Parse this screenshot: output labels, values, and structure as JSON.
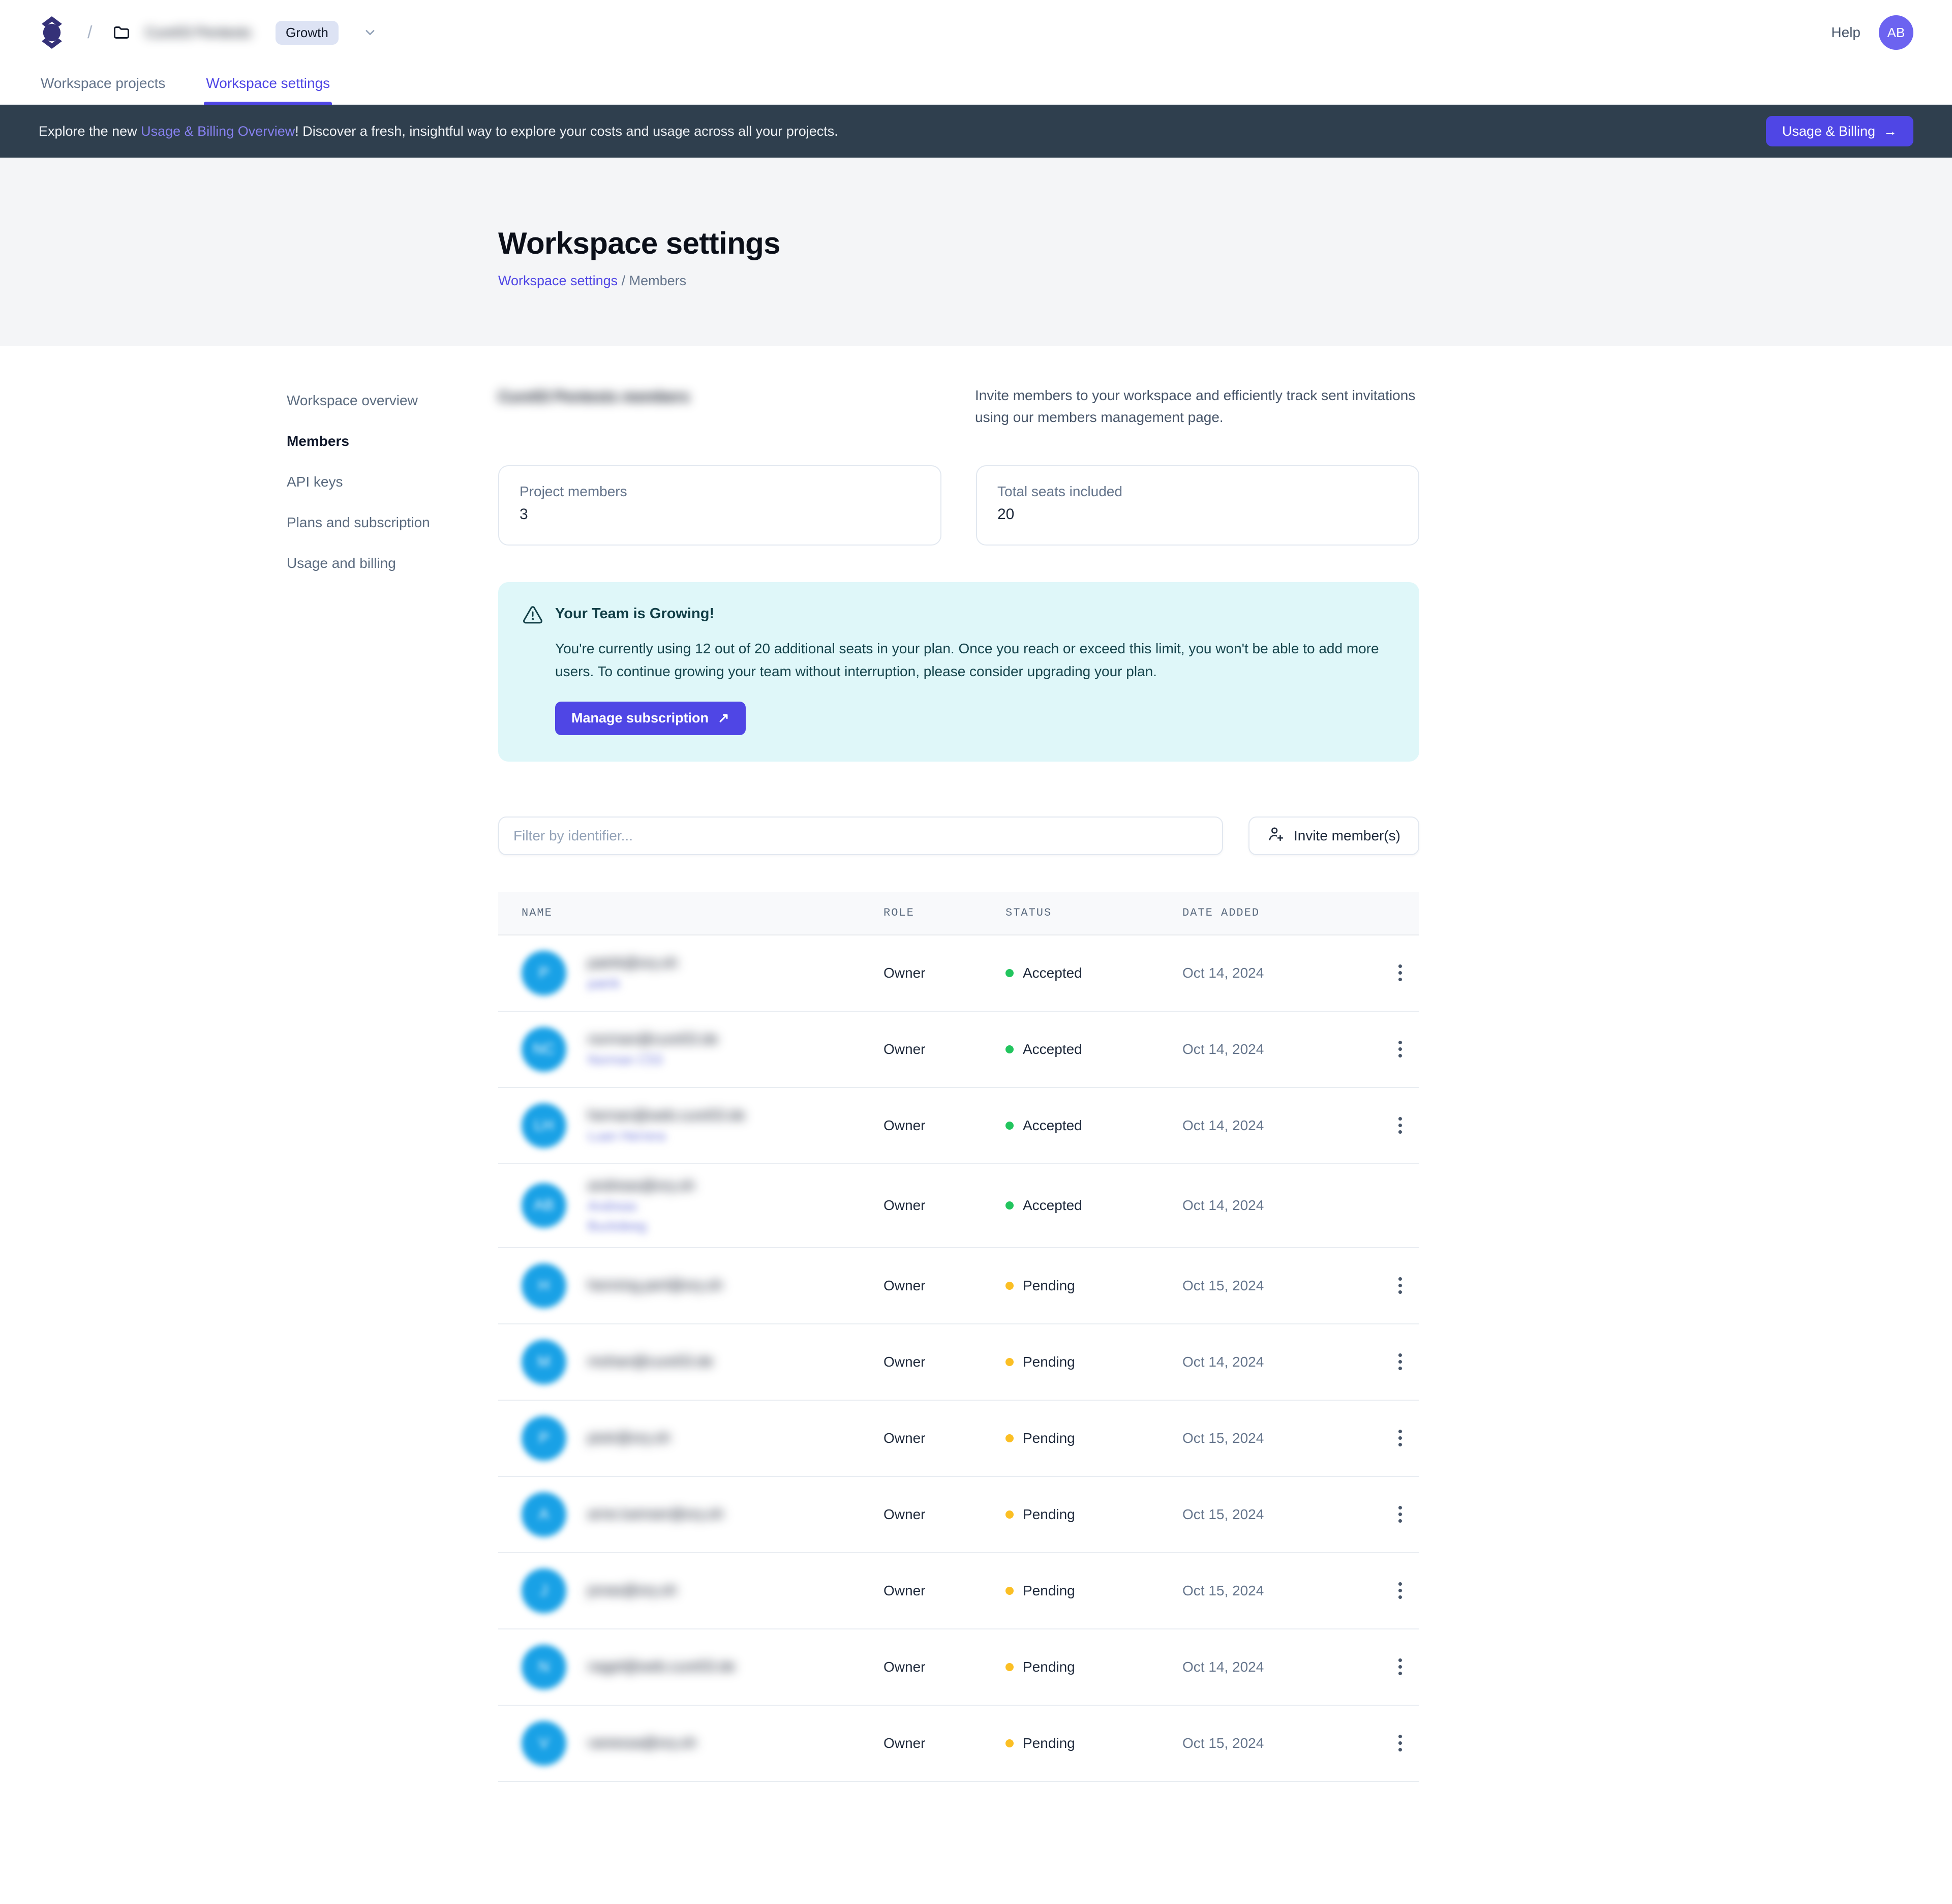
{
  "colors": {
    "accent_indigo": "#4f46e5",
    "banner_bg": "#2f3f4e",
    "alert_bg": "#dff7f9",
    "avatar_blue": "#19a1e6",
    "status_accepted_dot": "#22c55e",
    "status_pending_dot": "#fbbf24"
  },
  "header": {
    "workspace_name": "Cure53 Pentests",
    "plan_badge": "Growth",
    "help_label": "Help",
    "user_initials": "AB"
  },
  "tabs": [
    {
      "id": "workspace-projects",
      "label": "Workspace projects",
      "active": false
    },
    {
      "id": "workspace-settings",
      "label": "Workspace settings",
      "active": true
    }
  ],
  "banner": {
    "text_prefix": "Explore the new ",
    "link_label": "Usage & Billing Overview",
    "text_suffix": "! Discover a fresh, insightful way to explore your costs and usage across all your projects.",
    "button_label": "Usage & Billing",
    "button_arrow": "→"
  },
  "hero": {
    "title": "Workspace settings",
    "breadcrumb_link": "Workspace settings",
    "breadcrumb_current": " / Members"
  },
  "sidebar": {
    "items": [
      {
        "id": "workspace-overview",
        "label": "Workspace overview",
        "active": false
      },
      {
        "id": "members",
        "label": "Members",
        "active": true
      },
      {
        "id": "api-keys",
        "label": "API keys",
        "active": false
      },
      {
        "id": "plans-and-subscription",
        "label": "Plans and subscription",
        "active": false
      },
      {
        "id": "usage-and-billing",
        "label": "Usage and billing",
        "active": false
      }
    ]
  },
  "members": {
    "heading": "Cure53 Pentests members",
    "description": "Invite members to your workspace and efficiently track sent invitations using our members management page.",
    "cards": [
      {
        "label": "Project members",
        "value": "3"
      },
      {
        "label": "Total seats included",
        "value": "20"
      }
    ],
    "alert": {
      "title": "Your Team is Growing!",
      "body": "You're currently using 12 out of 20 additional seats in your plan. Once you reach or exceed this limit, you won't be able to add more users. To continue growing your team without interruption, please consider upgrading your plan.",
      "button_label": "Manage subscription",
      "button_arrow": "↗"
    },
    "toolbar": {
      "filter_placeholder": "Filter by identifier...",
      "filter_value": "",
      "invite_label": "Invite member(s)"
    },
    "table": {
      "columns": [
        "NAME",
        "ROLE",
        "STATUS",
        "DATE ADDED"
      ],
      "status_colors": {
        "Accepted": "#22c55e",
        "Pending": "#fbbf24"
      },
      "rows": [
        {
          "initials": "P",
          "email": "patrik@ory.sh",
          "secondary": [
            "patrik"
          ],
          "role": "Owner",
          "status": "Accepted",
          "date": "Oct 14, 2024",
          "menu": true
        },
        {
          "initials": "NC",
          "email": "norman@cure53.de",
          "secondary": [
            "Norman C53"
          ],
          "role": "Owner",
          "status": "Accepted",
          "date": "Oct 14, 2024",
          "menu": true
        },
        {
          "initials": "LH",
          "email": "hernan@web.cure53.de",
          "secondary": [
            "Luan Herrera"
          ],
          "role": "Owner",
          "status": "Accepted",
          "date": "Oct 14, 2024",
          "menu": true
        },
        {
          "initials": "AB",
          "email": "andreas@ory.sh",
          "secondary": [
            "Andreas",
            "Buckdeeg"
          ],
          "role": "Owner",
          "status": "Accepted",
          "date": "Oct 14, 2024",
          "menu": false
        },
        {
          "initials": "H",
          "email": "henning.perl@ory.sh",
          "secondary": [],
          "role": "Owner",
          "status": "Pending",
          "date": "Oct 15, 2024",
          "menu": true
        },
        {
          "initials": "M",
          "email": "mohan@cure53.de",
          "secondary": [],
          "role": "Owner",
          "status": "Pending",
          "date": "Oct 14, 2024",
          "menu": true
        },
        {
          "initials": "P",
          "email": "piotr@ory.sh",
          "secondary": [],
          "role": "Owner",
          "status": "Pending",
          "date": "Oct 15, 2024",
          "menu": true
        },
        {
          "initials": "A",
          "email": "arne.luenser@ory.sh",
          "secondary": [],
          "role": "Owner",
          "status": "Pending",
          "date": "Oct 15, 2024",
          "menu": true
        },
        {
          "initials": "J",
          "email": "jonas@ory.sh",
          "secondary": [],
          "role": "Owner",
          "status": "Pending",
          "date": "Oct 15, 2024",
          "menu": true
        },
        {
          "initials": "N",
          "email": "nagel@web.cure53.de",
          "secondary": [],
          "role": "Owner",
          "status": "Pending",
          "date": "Oct 14, 2024",
          "menu": true
        },
        {
          "initials": "V",
          "email": "vanessa@ory.sh",
          "secondary": [],
          "role": "Owner",
          "status": "Pending",
          "date": "Oct 15, 2024",
          "menu": true
        }
      ]
    }
  }
}
